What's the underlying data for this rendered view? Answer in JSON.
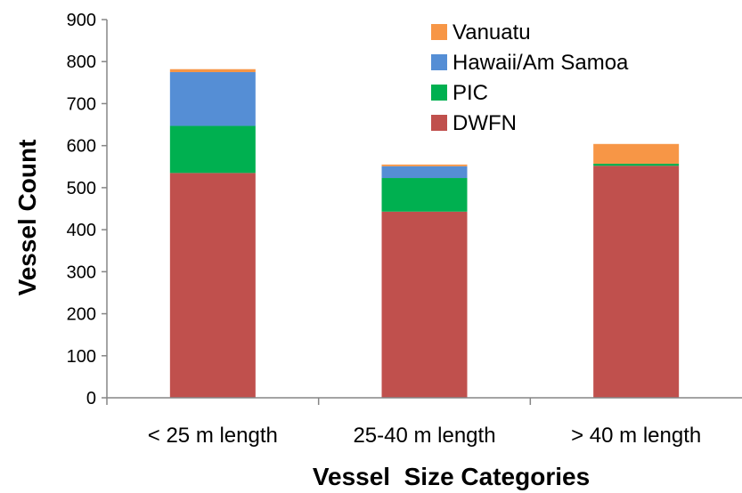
{
  "chart_data": {
    "type": "bar",
    "stacked": true,
    "categories": [
      "< 25 m length",
      "25-40 m length",
      "> 40 m length"
    ],
    "series": [
      {
        "name": "DWFN",
        "color": "#c0504d",
        "values": [
          535,
          443,
          552
        ]
      },
      {
        "name": "PIC",
        "color": "#00b050",
        "values": [
          112,
          80,
          5
        ]
      },
      {
        "name": "Hawaii/Am Samoa",
        "color": "#558ed5",
        "values": [
          128,
          28,
          0
        ]
      },
      {
        "name": "Vanuatu",
        "color": "#f79646",
        "values": [
          7,
          4,
          47
        ]
      }
    ],
    "xlabel": "Vessel  Size Categories",
    "ylabel": "Vessel Count",
    "ylim": [
      0,
      900
    ],
    "yticks": [
      0,
      100,
      200,
      300,
      400,
      500,
      600,
      700,
      800,
      900
    ],
    "grid": false,
    "legend_position": "top-right",
    "legend_order": [
      "Vanuatu",
      "Hawaii/Am Samoa",
      "PIC",
      "DWFN"
    ]
  }
}
